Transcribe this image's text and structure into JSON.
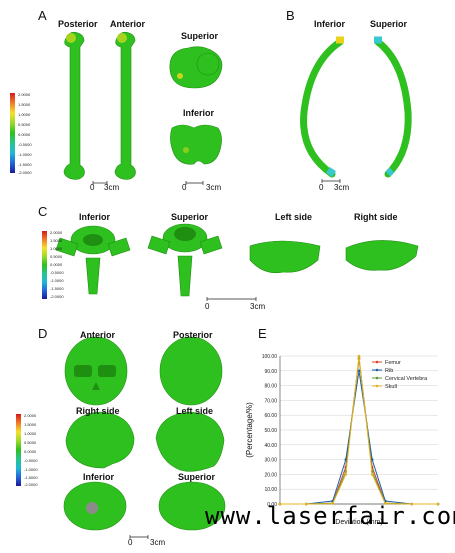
{
  "panels": {
    "A": {
      "letter": "A",
      "labels": [
        "Posterior",
        "Anterior",
        "Superior",
        "Inferior"
      ],
      "scale": {
        "zero": "0",
        "end": "3cm"
      }
    },
    "B": {
      "letter": "B",
      "labels": [
        "Inferior",
        "Superior"
      ],
      "scale": {
        "zero": "0",
        "end": "3cm"
      }
    },
    "C": {
      "letter": "C",
      "labels": [
        "Inferior",
        "Superior",
        "Left side",
        "Right side"
      ],
      "scale": {
        "zero": "0",
        "end": "3cm"
      }
    },
    "D": {
      "letter": "D",
      "labels": [
        "Anterior",
        "Posterior",
        "Right side",
        "Left side",
        "Inferior",
        "Superior"
      ],
      "scale": {
        "zero": "0",
        "end": "3cm"
      }
    },
    "E": {
      "letter": "E"
    }
  },
  "colorbar": {
    "labels": [
      "2.0000",
      "1.5000",
      "1.0000",
      "0.5000",
      "0.0000",
      "-0.5000",
      "-1.0000",
      "-1.5000",
      "-2.0000"
    ],
    "colors": [
      "#d7191c",
      "#f07c2a",
      "#f6e12a",
      "#9bd92b",
      "#2ec01f",
      "#28c48e",
      "#1fb8d6",
      "#2466d6",
      "#1a1a9e"
    ]
  },
  "chart_data": {
    "type": "line",
    "xlabel": "Deviation (mm)",
    "ylabel": "(Percentage/%)",
    "ylim": [
      0,
      100
    ],
    "yticks": [
      "0.00",
      "10.00",
      "20.00",
      "30.00",
      "40.00",
      "50.00",
      "60.00",
      "70.00",
      "80.00",
      "90.00",
      "100.00"
    ],
    "x": [
      -3,
      -2,
      -1,
      -0.5,
      0,
      0.5,
      1,
      2,
      3
    ],
    "series": [
      {
        "name": "Femur",
        "color": "#d9412a",
        "values": [
          0,
          0,
          0.5,
          25,
          98,
          25,
          0.5,
          0,
          0
        ]
      },
      {
        "name": "Rib",
        "color": "#1f5fa8",
        "values": [
          0,
          0,
          2,
          30,
          90,
          30,
          2,
          0,
          0
        ]
      },
      {
        "name": "Cervical Vertebra",
        "color": "#5a9a3a",
        "values": [
          0,
          0,
          0.5,
          22,
          99,
          22,
          0.5,
          0,
          0
        ]
      },
      {
        "name": "Skull",
        "color": "#e8b41e",
        "values": [
          0,
          0,
          0.3,
          20,
          100,
          20,
          0.3,
          0,
          0
        ]
      }
    ]
  },
  "watermark": "www.laserfair.com"
}
